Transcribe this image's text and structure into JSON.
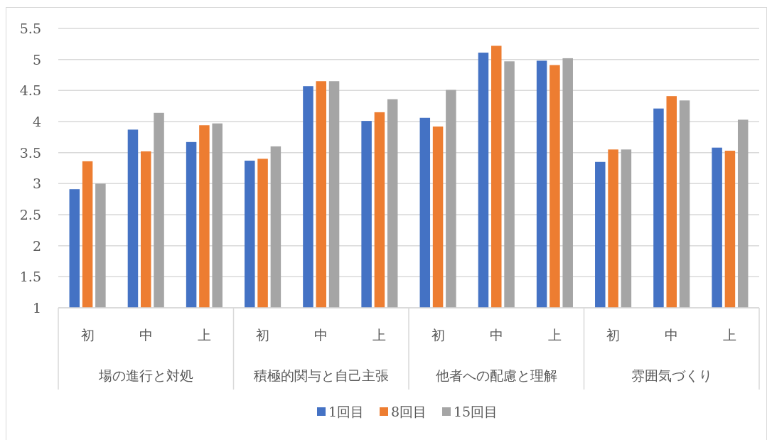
{
  "chart_data": {
    "type": "bar",
    "categories": [
      "初",
      "中",
      "上",
      "初",
      "中",
      "上",
      "初",
      "中",
      "上",
      "初",
      "中",
      "上"
    ],
    "annotations": [
      "場の進行と対処",
      "積極的関与と自己主張",
      "他者への配慮と理解",
      "雰囲気づくり"
    ],
    "series": [
      {
        "name": "1回目",
        "color": "#4472c4",
        "values": [
          2.91,
          3.87,
          3.67,
          3.37,
          4.57,
          4.01,
          4.06,
          5.11,
          4.98,
          3.35,
          4.21,
          3.58
        ]
      },
      {
        "name": "8回目",
        "color": "#ed7d31",
        "values": [
          3.36,
          3.52,
          3.94,
          3.4,
          4.65,
          4.15,
          3.92,
          5.22,
          4.91,
          3.55,
          4.41,
          3.53
        ]
      },
      {
        "name": "15回目",
        "color": "#a5a5a5",
        "values": [
          3.0,
          4.14,
          3.97,
          3.6,
          4.65,
          4.36,
          4.51,
          4.97,
          5.02,
          3.55,
          4.34,
          4.03
        ]
      }
    ],
    "ylim": [
      1,
      5.5
    ],
    "yticks": [
      1,
      1.5,
      2,
      2.5,
      3,
      3.5,
      4,
      4.5,
      5,
      5.5
    ],
    "grid": "y",
    "legend": "bottom"
  }
}
